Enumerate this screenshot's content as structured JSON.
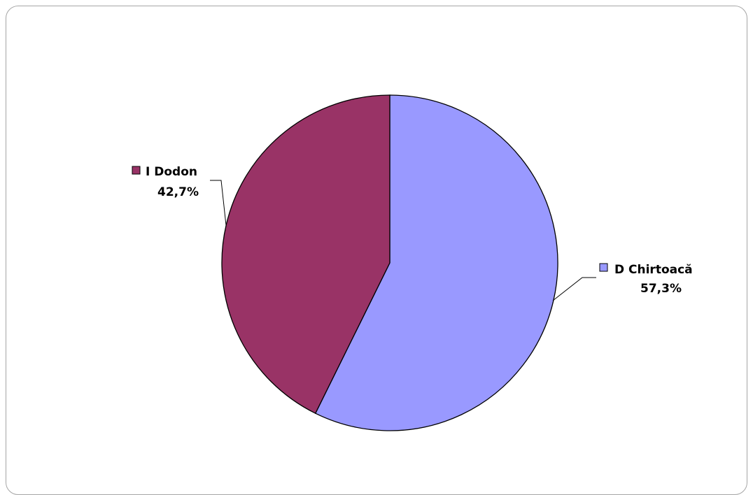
{
  "chart_data": {
    "type": "pie",
    "title": "",
    "slices": [
      {
        "label": "D Chirtoacă",
        "value": 57.3,
        "value_label": "57,3%",
        "color": "#9999ff"
      },
      {
        "label": "I Dodon",
        "value": 42.7,
        "value_label": "42,7%",
        "color": "#993366"
      }
    ],
    "start": "12 o'clock",
    "direction": "clockwise",
    "legend": "none",
    "data_labels": "outside with leader lines and legend keys"
  }
}
